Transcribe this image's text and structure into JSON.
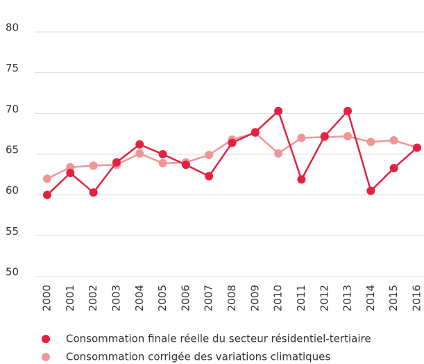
{
  "chart_data": {
    "type": "line",
    "categories": [
      "2000",
      "2001",
      "2002",
      "2003",
      "2004",
      "2005",
      "2006",
      "2007",
      "2008",
      "2009",
      "2010",
      "2011",
      "2012",
      "2013",
      "2014",
      "2015",
      "2016"
    ],
    "series": [
      {
        "name": "Consommation finale réelle du secteur résidentiel-tertiaire",
        "color": "#e4213f",
        "values": [
          60.0,
          62.7,
          60.3,
          64.0,
          66.2,
          65.0,
          63.7,
          62.3,
          66.4,
          67.7,
          70.3,
          61.9,
          67.2,
          70.3,
          60.5,
          63.3,
          65.8
        ]
      },
      {
        "name": "Consommation corrigée des variations climatiques",
        "color": "#f29596",
        "values": [
          62.0,
          63.4,
          63.6,
          63.7,
          65.1,
          63.9,
          64.0,
          64.9,
          66.8,
          67.6,
          65.1,
          67.0,
          67.1,
          67.2,
          66.5,
          66.7,
          65.8
        ]
      }
    ],
    "ylim": [
      50,
      80
    ],
    "yticks": [
      50,
      55,
      60,
      65,
      70,
      75,
      80
    ],
    "grid": true,
    "legend": "bottom"
  }
}
